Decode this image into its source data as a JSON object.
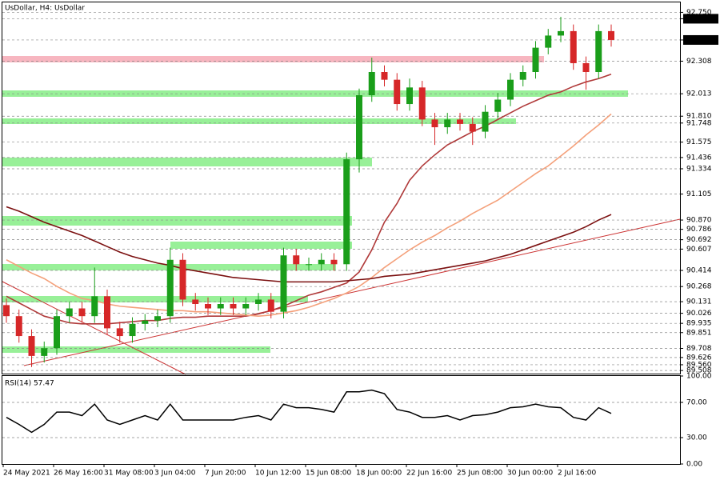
{
  "chart_data": [
    {
      "type": "candlestick",
      "title": "UsDollar, H4: UsDollar",
      "categories": [
        "24 May 2021",
        null,
        null,
        null,
        "26 May 16:00",
        null,
        null,
        null,
        "31 May 08:00",
        null,
        null,
        null,
        "3 Jun 04:00",
        null,
        null,
        null,
        "7 Jun 20:00",
        null,
        null,
        null,
        "10 Jun 12:00",
        null,
        null,
        null,
        "15 Jun 08:00",
        null,
        null,
        null,
        "18 Jun 00:00",
        null,
        null,
        null,
        "22 Jun 16:00",
        null,
        null,
        null,
        "25 Jun 08:00",
        null,
        null,
        null,
        "30 Jun 00:00",
        null,
        null,
        null,
        "2 Jul 16:00",
        null,
        null,
        null,
        null
      ],
      "open": [
        90.1,
        90.0,
        89.82,
        89.64,
        89.71,
        90.0,
        90.07,
        90.0,
        90.18,
        89.89,
        89.82,
        89.93,
        89.96,
        90.0,
        90.51,
        90.15,
        90.11,
        90.07,
        90.11,
        90.07,
        90.11,
        90.15,
        90.04,
        90.55,
        90.47,
        90.47,
        90.51,
        90.47,
        91.42,
        92.0,
        92.21,
        92.14,
        91.92,
        92.07,
        91.78,
        91.71,
        91.78,
        91.74,
        91.67,
        91.85,
        91.96,
        92.14,
        92.21,
        92.43,
        92.54,
        92.58,
        92.29,
        92.21,
        92.58
      ],
      "high": [
        90.16,
        90.06,
        89.88,
        89.77,
        90.06,
        90.13,
        90.13,
        90.44,
        90.24,
        89.95,
        89.99,
        90.02,
        90.06,
        90.62,
        90.57,
        90.21,
        90.17,
        90.17,
        90.17,
        90.17,
        90.21,
        90.21,
        90.62,
        90.61,
        90.53,
        90.57,
        90.57,
        91.48,
        92.06,
        92.34,
        92.27,
        92.2,
        92.15,
        92.13,
        91.84,
        91.84,
        91.84,
        91.8,
        91.91,
        92.02,
        92.2,
        92.27,
        92.49,
        92.6,
        92.71,
        92.64,
        92.35,
        92.64,
        92.64
      ],
      "low": [
        89.94,
        89.76,
        89.54,
        89.58,
        89.65,
        89.94,
        89.94,
        89.94,
        89.83,
        89.76,
        89.76,
        89.87,
        89.9,
        89.94,
        90.09,
        90.05,
        90.01,
        90.01,
        90.01,
        90.01,
        90.05,
        89.98,
        89.98,
        90.41,
        90.41,
        90.41,
        90.41,
        90.41,
        91.3,
        91.94,
        92.08,
        91.86,
        91.86,
        91.72,
        91.55,
        91.65,
        91.68,
        91.55,
        91.61,
        91.79,
        91.9,
        92.08,
        92.15,
        92.37,
        92.48,
        92.23,
        92.05,
        92.15,
        92.44
      ],
      "close": [
        90.0,
        89.82,
        89.64,
        89.71,
        90.0,
        90.07,
        90.0,
        90.18,
        89.89,
        89.82,
        89.93,
        89.96,
        90.0,
        90.51,
        90.15,
        90.11,
        90.07,
        90.11,
        90.07,
        90.11,
        90.15,
        90.04,
        90.55,
        90.47,
        90.47,
        90.51,
        90.47,
        91.42,
        92.0,
        92.21,
        92.14,
        91.92,
        92.07,
        91.78,
        91.71,
        91.78,
        91.74,
        91.67,
        91.85,
        91.96,
        92.14,
        92.21,
        92.43,
        92.54,
        92.58,
        92.29,
        92.21,
        92.58,
        92.5
      ],
      "up_color": "#1a9e1a",
      "down_color": "#d62728",
      "series": [
        {
          "color": "#b03a3a",
          "values": [
            90.18,
            90.12,
            90.06,
            90.0,
            89.97,
            89.94,
            89.93,
            89.93,
            89.93,
            89.94,
            89.95,
            89.96,
            89.96,
            89.98,
            89.99,
            89.99,
            90.0,
            90.0,
            90.0,
            90.0,
            90.02,
            90.05,
            90.09,
            90.14,
            90.19,
            90.22,
            90.26,
            90.3,
            90.4,
            90.6,
            90.85,
            91.02,
            91.23,
            91.36,
            91.46,
            91.55,
            91.61,
            91.67,
            91.72,
            91.78,
            91.84,
            91.9,
            91.95,
            92.0,
            92.03,
            92.08,
            92.12,
            92.15,
            92.19
          ]
        },
        {
          "color": "#f4a07a",
          "values": [
            90.51,
            90.45,
            90.39,
            90.34,
            90.27,
            90.21,
            90.16,
            90.14,
            90.11,
            90.09,
            90.08,
            90.07,
            90.06,
            90.05,
            90.05,
            90.04,
            90.04,
            90.03,
            90.02,
            90.01,
            90.0,
            90.01,
            90.03,
            90.05,
            90.08,
            90.12,
            90.16,
            90.21,
            90.27,
            90.35,
            90.44,
            90.52,
            90.6,
            90.67,
            90.73,
            90.8,
            90.86,
            90.93,
            90.99,
            91.05,
            91.13,
            91.21,
            91.29,
            91.36,
            91.45,
            91.54,
            91.64,
            91.73,
            91.83
          ]
        },
        {
          "color": "#7b1010",
          "values": [
            90.99,
            90.95,
            90.9,
            90.85,
            90.81,
            90.77,
            90.73,
            90.68,
            90.63,
            90.58,
            90.54,
            90.51,
            90.48,
            90.46,
            90.43,
            90.41,
            90.39,
            90.37,
            90.35,
            90.34,
            90.33,
            90.32,
            90.31,
            90.31,
            90.31,
            90.31,
            90.31,
            90.32,
            90.33,
            90.34,
            90.36,
            90.37,
            90.38,
            90.4,
            90.42,
            90.44,
            90.46,
            90.48,
            90.5,
            90.53,
            90.56,
            90.6,
            90.64,
            90.68,
            90.72,
            90.76,
            90.81,
            90.87,
            90.92
          ]
        }
      ],
      "ylim": [
        89.48,
        92.84
      ],
      "yticks": [
        {
          "value": 92.75,
          "label": "92.750"
        },
        {
          "value": 92.692,
          "label": "92.692",
          "highlight": true
        },
        {
          "value": 92.5,
          "label": "92.500",
          "highlight": true
        },
        92.308,
        92.013,
        {
          "value": 91.81,
          "label": "91.810"
        },
        91.748,
        91.575,
        91.436,
        91.334,
        91.105,
        {
          "value": 90.87,
          "label": "90.870"
        },
        90.786,
        90.692,
        90.607,
        90.414,
        90.268,
        90.131,
        90.026,
        89.935,
        89.851,
        89.708,
        89.626,
        {
          "value": 89.56,
          "label": "89.560"
        },
        89.508
      ],
      "grid": true
    },
    {
      "type": "line",
      "title": "RSI(14) 57.47",
      "color": "#000000",
      "values": [
        53,
        45,
        36,
        45,
        59,
        59,
        55,
        68,
        50,
        45,
        50,
        55,
        50,
        68,
        50,
        50,
        50,
        50,
        50,
        53,
        55,
        50,
        68,
        64,
        64,
        62,
        59,
        82,
        82,
        84,
        80,
        62,
        59,
        53,
        53,
        55,
        50,
        55,
        56,
        59,
        64,
        65,
        68,
        65,
        64,
        53,
        50,
        64,
        57.47
      ],
      "ylim": [
        0,
        100
      ],
      "yticks": [
        {
          "value": 100,
          "label": "100.00"
        },
        {
          "value": 70,
          "label": "70.00",
          "grid": true
        },
        {
          "value": 30,
          "label": "30.00",
          "grid": true
        },
        {
          "value": 0,
          "label": "0.00"
        }
      ]
    }
  ]
}
